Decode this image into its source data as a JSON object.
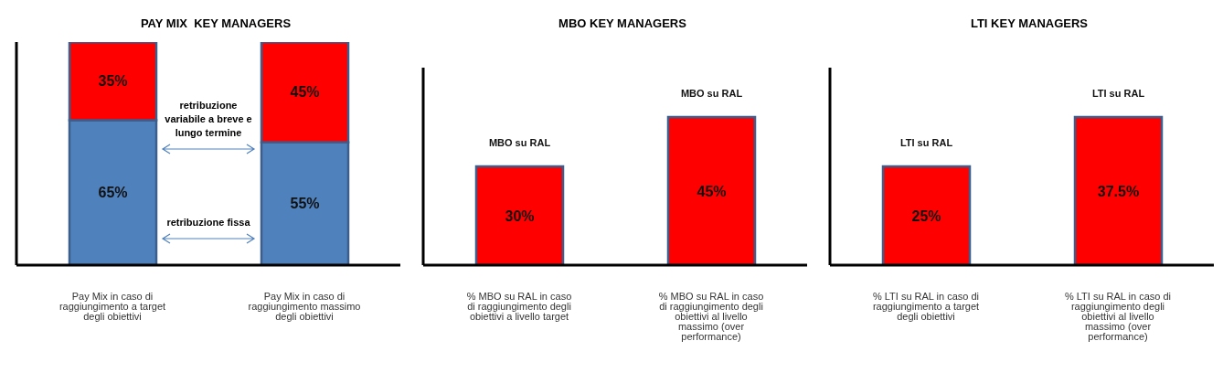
{
  "chart_data": [
    {
      "type": "bar",
      "title": "PAY MIX  KEY MANAGERS",
      "stacked": true,
      "tick_labels": "x",
      "ylim": [
        0,
        100
      ],
      "categories": [
        "Pay Mix in caso di raggiungimento a target degli obiettivi",
        "Pay Mix in caso di raggiungimento massimo degli obiettivi"
      ],
      "series": [
        {
          "color": "#4f81bd",
          "values": [
            65,
            55
          ],
          "value_labels": [
            "65%",
            "55%"
          ]
        },
        {
          "color": "#ff0000",
          "values": [
            35,
            45
          ],
          "value_labels": [
            "35%",
            "45%"
          ]
        }
      ],
      "annotations": [
        "retribuzione variabile a breve e lungo termine",
        "retribuzione fissa"
      ]
    },
    {
      "type": "bar",
      "title": "MBO KEY MANAGERS",
      "tick_labels": "x",
      "ylim": [
        0,
        60
      ],
      "categories": [
        "% MBO su RAL in caso di raggiungimento  degli obiettivi a livello target",
        "% MBO su RAL in caso di raggiungimento degli obiettivi al livello massimo (over performance)"
      ],
      "series": [
        {
          "color": "#ff0000",
          "values": [
            30,
            45
          ],
          "value_labels": [
            "30%",
            "45%"
          ]
        }
      ],
      "annotations": [
        {
          "text": "MBO su RAL",
          "x": "% MBO su RAL in caso di raggiungimento  degli obiettivi a livello target",
          "y": 30
        },
        {
          "text": "MBO su RAL",
          "x": "% MBO su RAL in caso di raggiungimento degli obiettivi al livello massimo (over performance)",
          "y": 45
        }
      ]
    },
    {
      "type": "bar",
      "title": "LTI KEY MANAGERS",
      "tick_labels": "x",
      "ylim": [
        0,
        50
      ],
      "categories": [
        "% LTI su RAL in caso di raggiungimento a target degli obiettivi",
        "% LTI su RAL in caso di raggiungimento degli obiettivi al livello massimo (over performance)"
      ],
      "series": [
        {
          "color": "#ff0000",
          "values": [
            25,
            37.5
          ],
          "value_labels": [
            "25%",
            "37.5%"
          ]
        }
      ],
      "annotations": [
        {
          "text": "LTI su RAL",
          "x": "% LTI su RAL in caso di raggiungimento a target degli obiettivi",
          "y": 25
        },
        {
          "text": "LTI su RAL",
          "x": "% LTI su RAL in caso di raggiungimento degli obiettivi al livello massimo (over performance)",
          "y": 37.5
        }
      ]
    }
  ]
}
